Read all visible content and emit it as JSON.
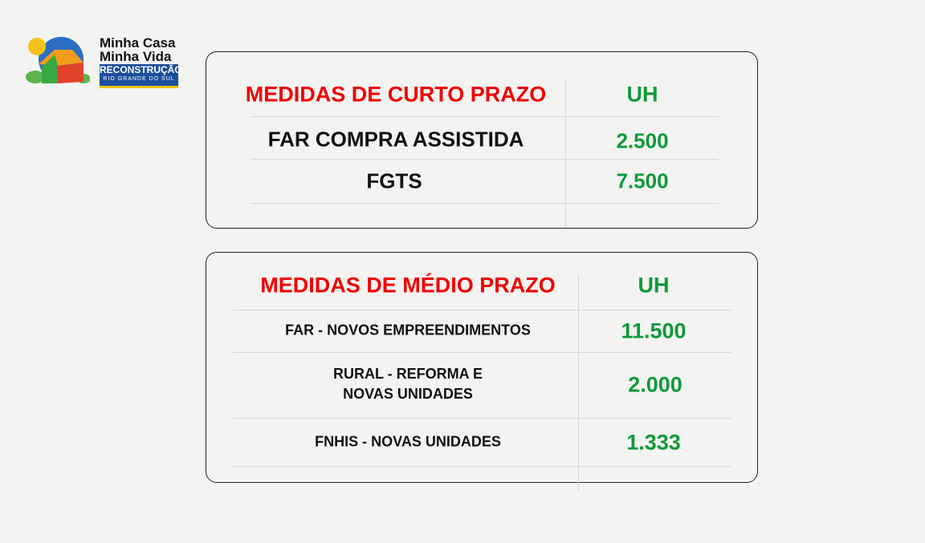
{
  "logo": {
    "line1": "Minha Casa",
    "line2": "Minha Vida",
    "badge": "RECONSTRUÇÃO",
    "badge_sub": "RIO GRANDE DO SUL"
  },
  "short_term": {
    "header": "MEDIDAS DE CURTO PRAZO",
    "unit_header": "UH",
    "rows": [
      {
        "label": "FAR COMPRA ASSISTIDA",
        "value": "2.500"
      },
      {
        "label": "FGTS",
        "value": "7.500"
      }
    ]
  },
  "medium_term": {
    "header": "MEDIDAS DE MÉDIO PRAZO",
    "unit_header": "UH",
    "rows": [
      {
        "label": "FAR - NOVOS EMPREENDIMENTOS",
        "value": "11.500"
      },
      {
        "label": "RURAL - REFORMA E\nNOVAS UNIDADES",
        "value": "2.000"
      },
      {
        "label": "FNHIS - NOVAS UNIDADES",
        "value": "1.333"
      }
    ]
  },
  "colors": {
    "header": "#f00000",
    "value": "#0f9a3a",
    "badge": "#1c4f9c"
  }
}
